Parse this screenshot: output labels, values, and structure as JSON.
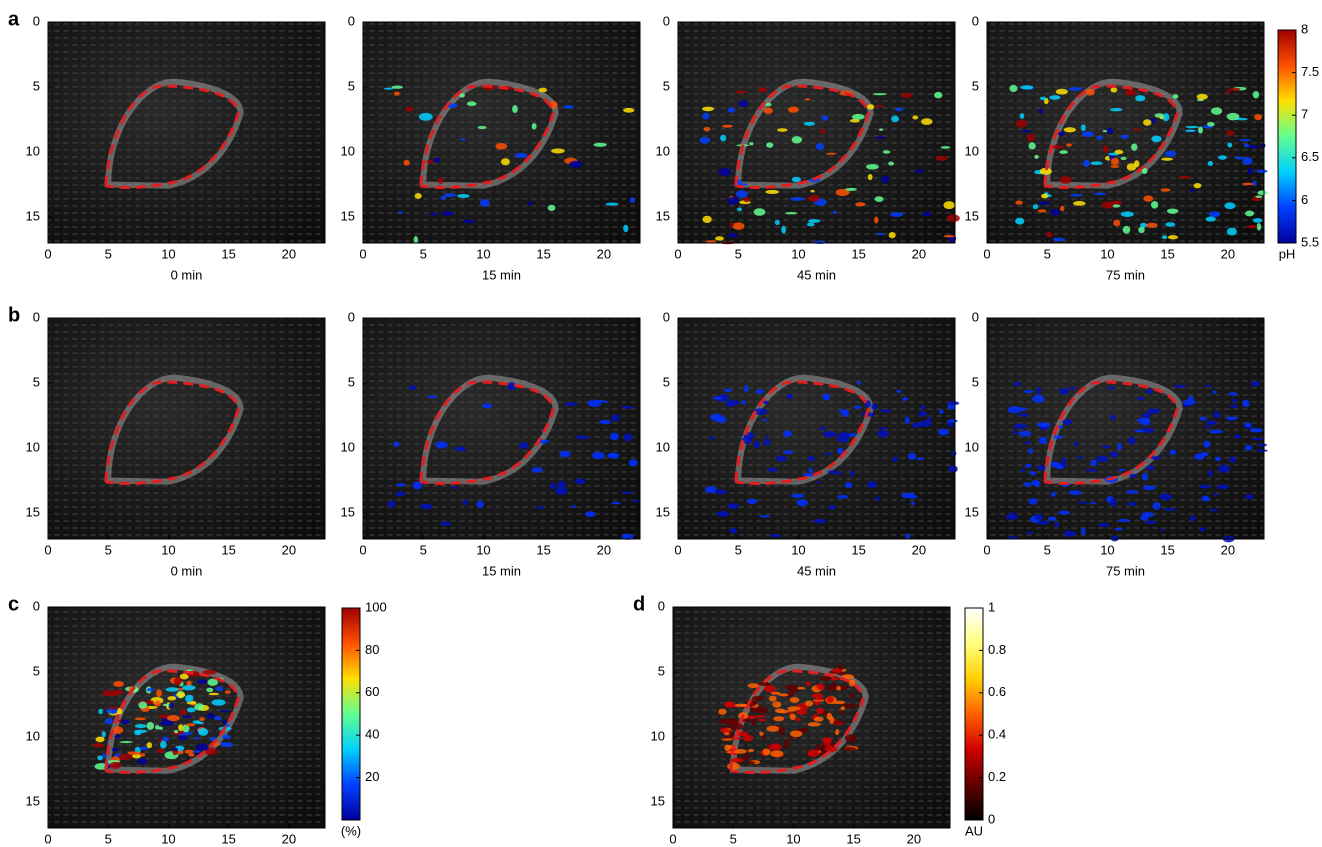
{
  "axes": {
    "xlim": [
      0,
      23
    ],
    "ylim": [
      0,
      17
    ],
    "xticks": [
      0,
      5,
      10,
      15,
      20
    ],
    "yticks": [
      0,
      5,
      10,
      15
    ]
  },
  "panels": [
    {
      "label": "a",
      "images": [
        {
          "caption": "0 min"
        },
        {
          "caption": "15 min"
        },
        {
          "caption": "45 min"
        },
        {
          "caption": "75 min"
        }
      ],
      "colorbar": {
        "lim": [
          5.5,
          8
        ],
        "ticks": [
          5.5,
          6,
          6.5,
          7,
          7.5,
          8
        ],
        "label": "pH",
        "colormap": [
          "#0000a0",
          "#0040ff",
          "#00d0ff",
          "#60ff90",
          "#ffe000",
          "#ff5000",
          "#a00000"
        ]
      }
    },
    {
      "label": "b",
      "images": [
        {
          "caption": "0 min"
        },
        {
          "caption": "15 min"
        },
        {
          "caption": "45 min"
        },
        {
          "caption": "75 min"
        }
      ]
    },
    {
      "label": "c",
      "images": [
        {}
      ],
      "colorbar": {
        "lim": [
          0,
          100
        ],
        "ticks": [
          20,
          40,
          60,
          80,
          100
        ],
        "label": "(%)",
        "colormap": [
          "#0000a0",
          "#0040ff",
          "#00d0ff",
          "#60ff90",
          "#ffe000",
          "#ff5000",
          "#a00000"
        ]
      }
    },
    {
      "label": "d",
      "images": [
        {}
      ],
      "colorbar": {
        "lim": [
          0,
          1
        ],
        "ticks": [
          0,
          0.2,
          0.4,
          0.6,
          0.8,
          1
        ],
        "label": "AU",
        "colormap": [
          "#000000",
          "#600000",
          "#d00000",
          "#ff6000",
          "#ffd000",
          "#ffff80",
          "#ffffff"
        ]
      }
    }
  ]
}
